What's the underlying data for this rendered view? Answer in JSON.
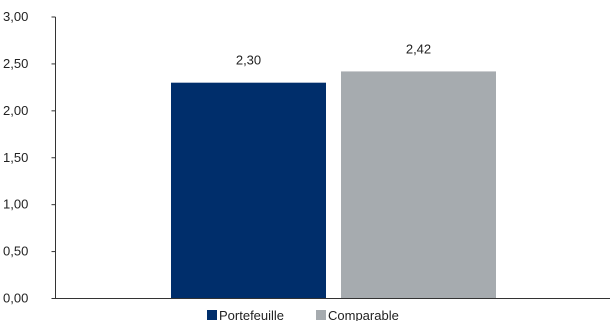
{
  "chart_data": {
    "type": "bar",
    "title": "",
    "xlabel": "",
    "ylabel": "",
    "ylim": [
      0,
      3
    ],
    "yticks": [
      "0,00",
      "0,50",
      "1,00",
      "1,50",
      "2,00",
      "2,50",
      "3,00"
    ],
    "ytick_values": [
      0,
      0.5,
      1,
      1.5,
      2,
      2.5,
      3
    ],
    "grid": false,
    "legend_position": "bottom",
    "series": [
      {
        "name": "Portefeuille",
        "value": 2.3,
        "label": "2,30",
        "color": "#002e6b"
      },
      {
        "name": "Comparable",
        "value": 2.42,
        "label": "2,42",
        "color": "#a6abaf"
      }
    ]
  }
}
